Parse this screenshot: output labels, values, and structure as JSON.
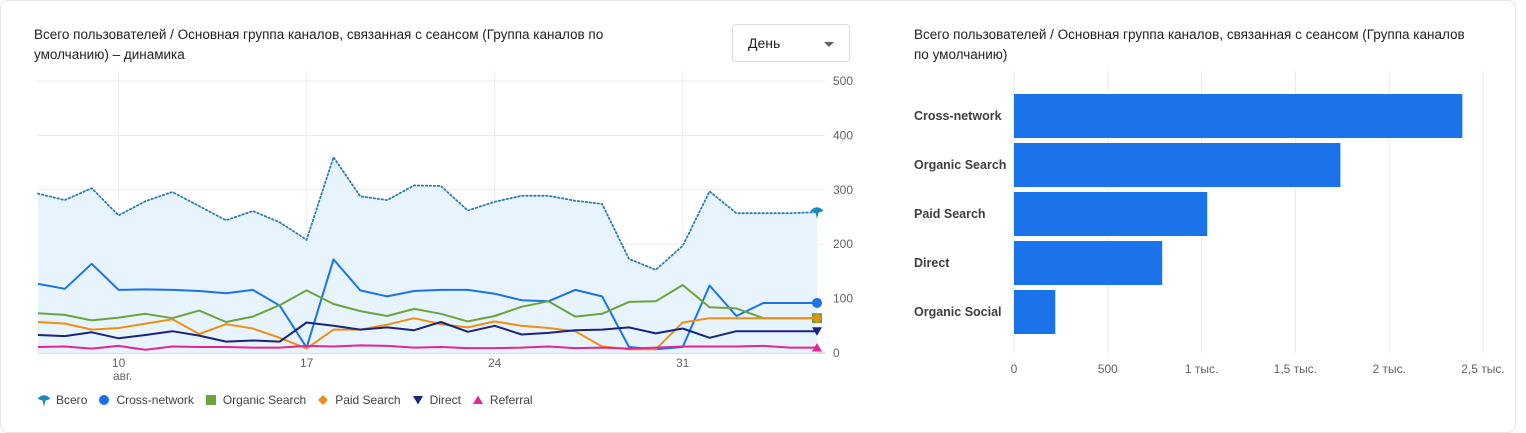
{
  "line_card": {
    "title": "Всего пользователей / Основная группа каналов, связанная с сеансом (Группа каналов по умолчанию) – динамика",
    "period_select": {
      "value": "День"
    }
  },
  "bar_card": {
    "title": "Всего пользователей / Основная группа каналов, связанная с сеансом (Группа каналов по умолчанию)"
  },
  "legend": [
    {
      "label": "Всего",
      "color": "#1a73e8",
      "icon": "pin-icon"
    },
    {
      "label": "Cross-network",
      "color": "#1a73e8",
      "icon": "circle-icon"
    },
    {
      "label": "Organic Search",
      "color": "#6ca33d",
      "icon": "square-icon"
    },
    {
      "label": "Paid Search",
      "color": "#ef8e15",
      "icon": "diamond-icon"
    },
    {
      "label": "Direct",
      "color": "#1a237e",
      "icon": "triangle-down-icon"
    },
    {
      "label": "Referral",
      "color": "#e52592",
      "icon": "triangle-up-icon"
    }
  ],
  "chart_data": [
    {
      "type": "line",
      "x_tick_labels": [
        "10",
        "17",
        "24",
        "31"
      ],
      "x_tick_sublabel": "авг.",
      "y_tick_labels": [
        "0",
        "100",
        "200",
        "300",
        "400",
        "500"
      ],
      "ylim": [
        0,
        500
      ],
      "x": [
        "2024-08-07",
        "2024-08-08",
        "2024-08-09",
        "2024-08-10",
        "2024-08-11",
        "2024-08-12",
        "2024-08-13",
        "2024-08-14",
        "2024-08-15",
        "2024-08-16",
        "2024-08-17",
        "2024-08-18",
        "2024-08-19",
        "2024-08-20",
        "2024-08-21",
        "2024-08-22",
        "2024-08-23",
        "2024-08-24",
        "2024-08-25",
        "2024-08-26",
        "2024-08-27",
        "2024-08-28",
        "2024-08-29",
        "2024-08-30",
        "2024-08-31",
        "2024-09-01",
        "2024-09-02",
        "2024-09-03",
        "2024-09-04",
        "2024-09-05"
      ],
      "series": [
        {
          "name": "Всего",
          "color": "#1a73e8",
          "style": "dotted-area",
          "values": [
            293,
            281,
            303,
            253,
            279,
            296,
            270,
            244,
            261,
            240,
            208,
            360,
            288,
            281,
            308,
            307,
            262,
            278,
            289,
            289,
            280,
            274,
            173,
            153,
            197,
            297,
            257,
            257,
            257,
            259
          ]
        },
        {
          "name": "Cross-network",
          "color": "#1a73e8",
          "style": "line",
          "values": [
            127,
            118,
            164,
            116,
            117,
            116,
            114,
            110,
            116,
            87,
            10,
            172,
            115,
            104,
            114,
            116,
            116,
            109,
            97,
            95,
            116,
            104,
            11,
            7,
            11,
            124,
            68,
            92,
            92,
            92
          ]
        },
        {
          "name": "Organic Search",
          "color": "#6ca33d",
          "style": "line",
          "values": [
            73,
            70,
            60,
            65,
            72,
            64,
            78,
            57,
            67,
            88,
            115,
            90,
            77,
            68,
            81,
            72,
            58,
            68,
            85,
            95,
            67,
            72,
            94,
            95,
            125,
            84,
            82,
            64,
            64,
            64
          ]
        },
        {
          "name": "Paid Search",
          "color": "#ef8e15",
          "style": "line",
          "values": [
            57,
            54,
            43,
            46,
            54,
            62,
            35,
            53,
            45,
            28,
            8,
            43,
            43,
            52,
            64,
            53,
            47,
            58,
            50,
            46,
            40,
            12,
            7,
            7,
            56,
            64,
            64,
            64,
            64,
            64
          ]
        },
        {
          "name": "Direct",
          "color": "#1a237e",
          "style": "line",
          "values": [
            33,
            31,
            38,
            27,
            33,
            40,
            32,
            21,
            23,
            21,
            56,
            50,
            43,
            47,
            42,
            57,
            39,
            50,
            34,
            37,
            42,
            43,
            47,
            36,
            45,
            28,
            40,
            40,
            40,
            40
          ]
        },
        {
          "name": "Referral",
          "color": "#e52592",
          "style": "line",
          "values": [
            11,
            12,
            8,
            13,
            6,
            12,
            11,
            11,
            10,
            10,
            13,
            12,
            14,
            13,
            10,
            11,
            9,
            9,
            10,
            12,
            9,
            10,
            8,
            10,
            12,
            12,
            12,
            13,
            10,
            10
          ]
        }
      ]
    },
    {
      "type": "bar",
      "orientation": "horizontal",
      "color": "#1a73e8",
      "categories": [
        "Cross-network",
        "Organic Search",
        "Paid Search",
        "Direct",
        "Organic Social"
      ],
      "values": [
        2390,
        1740,
        1030,
        790,
        220
      ],
      "xlim": [
        0,
        2500
      ],
      "x_tick_values": [
        0,
        500,
        1000,
        1500,
        2000,
        2500
      ],
      "x_tick_labels": [
        "0",
        "500",
        "1 тыс.",
        "1,5 тыс.",
        "2 тыс.",
        "2,5 тыс."
      ]
    }
  ]
}
